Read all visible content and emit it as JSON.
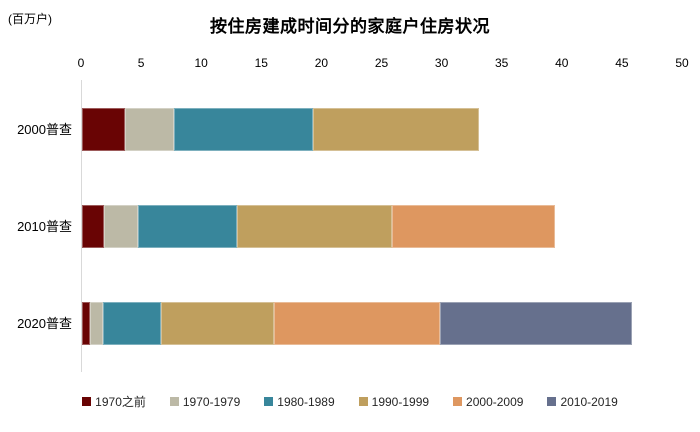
{
  "unit_label": "(百万户)",
  "title": "按住房建成时间分的家庭户住房状况",
  "chart_data": {
    "type": "bar",
    "orientation": "horizontal",
    "stacked": true,
    "title": "按住房建成时间分的家庭户住房状况",
    "unit": "百万户",
    "categories": [
      "2000普查",
      "2010普查",
      "2020普查"
    ],
    "series": [
      {
        "name": "1970之前",
        "color": "#690404",
        "values": [
          3.6,
          1.8,
          0.7
        ]
      },
      {
        "name": "1970-1979",
        "color": "#BCB9A6",
        "values": [
          4.1,
          2.8,
          1.1
        ]
      },
      {
        "name": "1980-1989",
        "color": "#38869B",
        "values": [
          11.6,
          8.2,
          4.8
        ]
      },
      {
        "name": "1990-1999",
        "color": "#BF9F5E",
        "values": [
          13.8,
          12.9,
          9.4
        ]
      },
      {
        "name": "2000-2009",
        "color": "#DE9760",
        "values": [
          0,
          13.6,
          13.8
        ]
      },
      {
        "name": "2010-2019",
        "color": "#66708D",
        "values": [
          0,
          0,
          16.0
        ]
      }
    ],
    "totals": [
      33.1,
      39.3,
      45.8
    ],
    "xlim": [
      0,
      50
    ],
    "x_ticks": [
      0,
      5,
      10,
      15,
      20,
      25,
      30,
      35,
      40,
      45,
      50
    ],
    "xlabel": "",
    "ylabel": "",
    "grid": false,
    "legend_position": "bottom"
  }
}
